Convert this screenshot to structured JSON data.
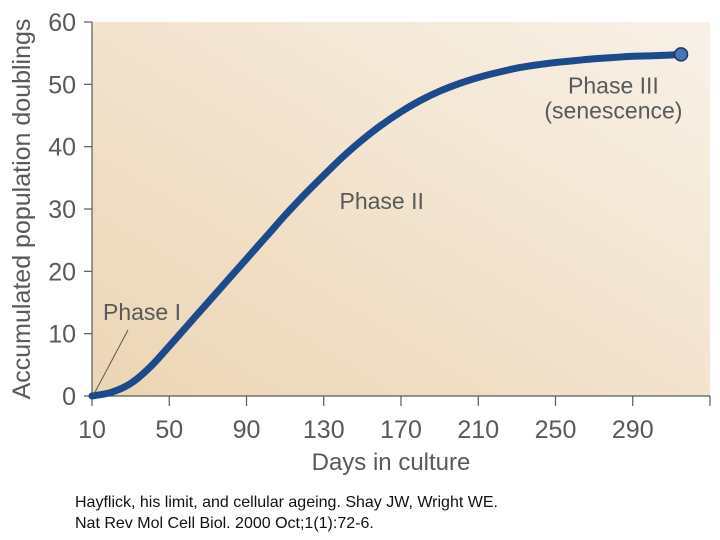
{
  "chart_data": {
    "type": "line",
    "xlabel": "Days in culture",
    "ylabel": "Accumulated population doublings",
    "xlim": [
      10,
      330
    ],
    "ylim": [
      0,
      60
    ],
    "xticks": [
      10,
      50,
      90,
      130,
      170,
      210,
      250,
      290
    ],
    "yticks": [
      0,
      10,
      20,
      30,
      40,
      50,
      60
    ],
    "grid": false,
    "background_gradient": [
      "#ecd5b4",
      "#f8f1e7"
    ],
    "line_color": "#1c4a8a",
    "series": [
      {
        "x": [
          10,
          20,
          30,
          40,
          50,
          60,
          70,
          80,
          90,
          100,
          110,
          120,
          130,
          140,
          150,
          160,
          170,
          180,
          190,
          200,
          210,
          220,
          230,
          240,
          250,
          260,
          270,
          280,
          290,
          300,
          310,
          315
        ],
        "y": [
          0,
          0.6,
          2,
          4.6,
          8,
          11.5,
          15,
          18.5,
          22,
          25.5,
          29,
          32.3,
          35.4,
          38.4,
          41.1,
          43.5,
          45.6,
          47.4,
          48.9,
          50.1,
          51.1,
          51.9,
          52.6,
          53.1,
          53.5,
          53.8,
          54.1,
          54.3,
          54.5,
          54.6,
          54.7,
          54.8
        ]
      }
    ],
    "annotations": [
      {
        "text": "Phase I",
        "x": 10,
        "y": 0,
        "kind": "callout"
      },
      {
        "text": "Phase II",
        "x": 160,
        "y": 30
      },
      {
        "text": "Phase III",
        "x": 280,
        "y": 48.5
      },
      {
        "text": "(senescence)",
        "x": 280,
        "y": 44.5
      }
    ]
  },
  "caption": {
    "line1": "Hayflick, his limit, and cellular ageing. Shay JW, Wright WE.",
    "line2": "Nat Rev Mol Cell Biol. 2000 Oct;1(1):72-6."
  }
}
